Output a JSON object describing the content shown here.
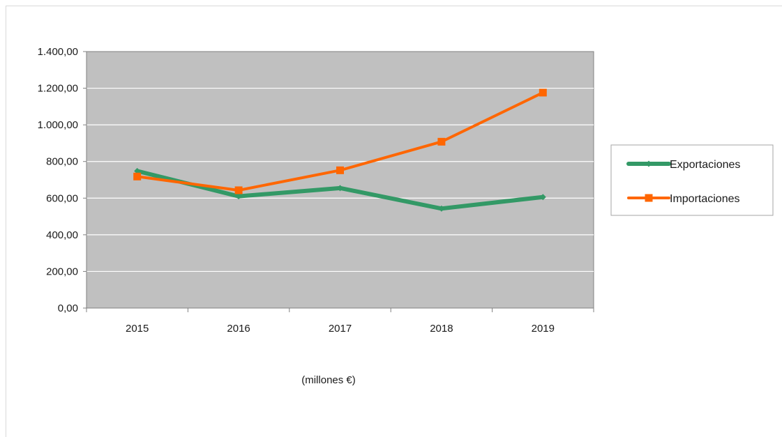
{
  "chart_data": {
    "type": "line",
    "categories": [
      "2015",
      "2016",
      "2017",
      "2018",
      "2019"
    ],
    "series": [
      {
        "name": "Exportaciones",
        "values": [
          748,
          610,
          655,
          543,
          606
        ],
        "color": "#339966",
        "marker": "diamond"
      },
      {
        "name": "Importaciones",
        "values": [
          718,
          643,
          752,
          908,
          1176
        ],
        "color": "#ff6600",
        "marker": "square"
      }
    ],
    "ylim": [
      0,
      1400
    ],
    "yticks": [
      0,
      200,
      400,
      600,
      800,
      1000,
      1200,
      1400
    ],
    "ytick_labels": [
      "0,00",
      "200,00",
      "400,00",
      "600,00",
      "800,00",
      "1.000,00",
      "1.200,00",
      "1.400,00"
    ],
    "plot_background": "#c0c0c0",
    "grid": true,
    "legend_position": "right",
    "unit_label": "(millones €)"
  }
}
